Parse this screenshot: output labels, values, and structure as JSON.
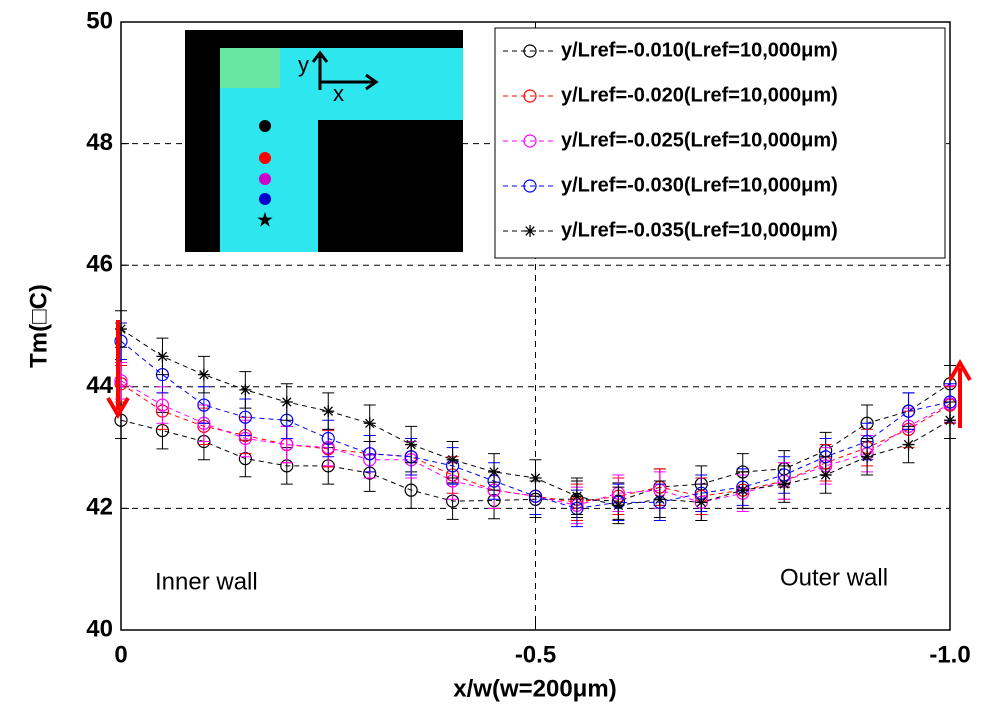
{
  "chart_data": {
    "type": "line",
    "x_label": "x/w(w=200μm)",
    "y_label": "Tm(□C)",
    "annotations": [
      "Inner wall",
      "Outer wall"
    ],
    "inset_labels": [
      "y",
      "x"
    ],
    "x": [
      0,
      -0.05,
      -0.1,
      -0.15,
      -0.2,
      -0.25,
      -0.3,
      -0.35,
      -0.4,
      -0.45,
      -0.5,
      -0.55,
      -0.6,
      -0.65,
      -0.7,
      -0.75,
      -0.8,
      -0.85,
      -0.9,
      -0.95,
      -1
    ],
    "xlim": [
      0,
      -1
    ],
    "xticks": [
      0,
      -0.5,
      {
        "value": -1,
        "label": "-1.0"
      }
    ],
    "ylim": [
      40,
      50
    ],
    "yticks": [
      40,
      42,
      44,
      46,
      48,
      50
    ],
    "grid": true,
    "legend": "upper right",
    "series": [
      {
        "name": "y/Lref=-0.010(Lref=10,000μm)",
        "color": "#000000",
        "marker": "circle",
        "values": [
          43.45,
          43.28,
          43.1,
          42.82,
          42.7,
          42.7,
          42.58,
          42.3,
          42.12,
          42.13,
          42.15,
          42.15,
          42.12,
          42.35,
          42.4,
          42.6,
          42.65,
          42.95,
          43.4,
          43.6,
          44.05
        ],
        "errors": [
          0.3,
          0.3,
          0.3,
          0.3,
          0.3,
          0.3,
          0.3,
          0.3,
          0.3,
          0.3,
          0.3,
          0.3,
          0.3,
          0.3,
          0.3,
          0.3,
          0.3,
          0.3,
          0.3,
          0.3,
          0.3
        ]
      },
      {
        "name": "y/Lref=-0.020(Lref=10,000μm)",
        "color": "#ff0000",
        "marker": "circle",
        "values": [
          44.05,
          43.6,
          43.35,
          43.2,
          43.05,
          42.98,
          42.9,
          42.85,
          42.55,
          42.3,
          42.2,
          42.1,
          42.2,
          42.35,
          42.2,
          42.3,
          42.45,
          42.75,
          43.0,
          43.3,
          43.7
        ],
        "errors": [
          0.3,
          0.3,
          0.3,
          0.3,
          0.3,
          0.3,
          0.3,
          0.3,
          0.3,
          0.3,
          0.3,
          0.3,
          0.3,
          0.3,
          0.3,
          0.3,
          0.3,
          0.3,
          0.3,
          0.3,
          0.3
        ]
      },
      {
        "name": "y/Lref=-0.025(Lref=10,000μm)",
        "color": "#ff00ff",
        "marker": "circle",
        "values": [
          44.1,
          43.7,
          43.4,
          43.15,
          43.05,
          43.0,
          42.8,
          42.8,
          42.45,
          42.3,
          42.2,
          42.05,
          42.25,
          42.3,
          42.1,
          42.25,
          42.45,
          42.7,
          42.9,
          43.35,
          43.72
        ],
        "errors": [
          0.3,
          0.3,
          0.3,
          0.3,
          0.3,
          0.3,
          0.3,
          0.3,
          0.3,
          0.3,
          0.3,
          0.3,
          0.3,
          0.3,
          0.3,
          0.3,
          0.3,
          0.3,
          0.3,
          0.3,
          0.3
        ]
      },
      {
        "name": "y/Lref=-0.030(Lref=10,000μm)",
        "color": "#0000ff",
        "marker": "circle",
        "values": [
          44.75,
          44.2,
          43.7,
          43.5,
          43.45,
          43.15,
          42.9,
          42.85,
          42.7,
          42.45,
          42.2,
          42.0,
          42.1,
          42.1,
          42.25,
          42.35,
          42.55,
          42.85,
          43.1,
          43.6,
          43.75
        ],
        "errors": [
          0.3,
          0.3,
          0.3,
          0.3,
          0.3,
          0.3,
          0.3,
          0.3,
          0.3,
          0.3,
          0.3,
          0.3,
          0.3,
          0.3,
          0.3,
          0.3,
          0.3,
          0.3,
          0.3,
          0.3,
          0.3
        ]
      },
      {
        "name": "y/Lref=-0.035(Lref=10,000μm)",
        "color": "#000000",
        "marker": "star",
        "values": [
          44.95,
          44.5,
          44.2,
          43.95,
          43.75,
          43.6,
          43.4,
          43.05,
          42.8,
          42.6,
          42.5,
          42.2,
          42.05,
          42.15,
          42.1,
          42.3,
          42.4,
          42.55,
          42.85,
          43.05,
          43.45
        ],
        "errors": [
          0.3,
          0.3,
          0.3,
          0.3,
          0.3,
          0.3,
          0.3,
          0.3,
          0.3,
          0.3,
          0.3,
          0.3,
          0.3,
          0.3,
          0.3,
          0.3,
          0.3,
          0.3,
          0.3,
          0.3,
          0.3
        ]
      }
    ]
  }
}
